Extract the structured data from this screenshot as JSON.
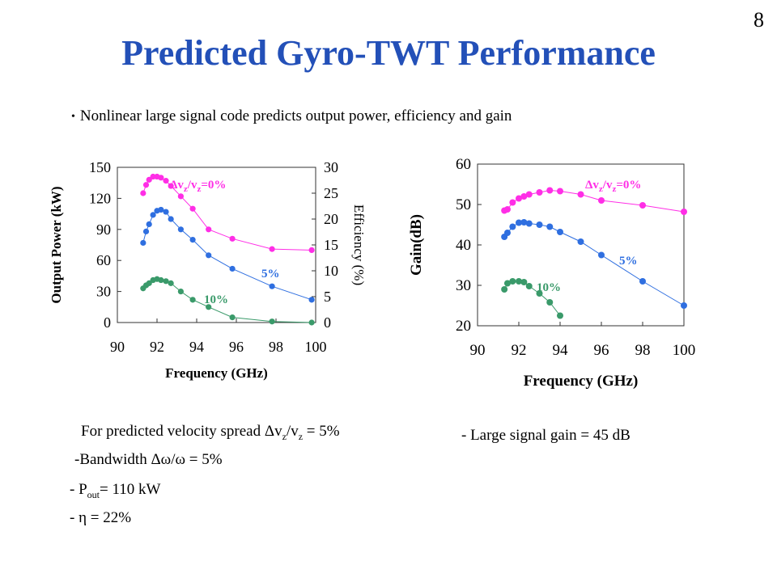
{
  "slide": {
    "number": "8",
    "title": "Predicted Gyro-TWT Performance",
    "bullet": "Nonlinear large signal code predicts output power, efficiency and gain"
  },
  "notes": {
    "spread_prefix": "For predicted velocity spread ",
    "spread_delta": "Δ",
    "spread_v1": "v",
    "spread_sub1": "z",
    "spread_slash": "/v",
    "spread_sub2": "z",
    "spread_value": " = 5%",
    "bandwidth_prefix": "-Bandwidth ",
    "bandwidth_symbol": "Δω/ω",
    "bandwidth_value": " = 5%",
    "pout_prefix": "- P",
    "pout_sub": "out",
    "pout_value": "= 110 kW",
    "eta_prefix": "- ",
    "eta_symbol": "η",
    "eta_value": " = 22%",
    "gain_note": "- Large signal gain = 45 dB"
  },
  "colors": {
    "title": "#2350b8",
    "magenta": "#ff2ee6",
    "blue": "#2f6fe0",
    "green": "#3a9a6a"
  },
  "chart_data": [
    {
      "type": "scatter",
      "xlabel": "Frequency (GHz)",
      "ylabel": "Output Power (kW)",
      "y2label": "Efficiency (%)",
      "xlim": [
        90,
        100
      ],
      "ylim": [
        0,
        150
      ],
      "y2lim": [
        0,
        30
      ],
      "xticks": [
        "90",
        "92",
        "94",
        "96",
        "98",
        "100"
      ],
      "yticks": [
        "0",
        "30",
        "60",
        "90",
        "120",
        "150"
      ],
      "y2ticks": [
        "0",
        "5",
        "10",
        "15",
        "20",
        "25",
        "30"
      ],
      "series": [
        {
          "name": "Δv_z/v_z=0%",
          "label_main": "Δv",
          "label_sub1": "z",
          "label_mid": "/v",
          "label_sub2": "z",
          "label_end": "=0%",
          "color": "#ff2ee6",
          "x": [
            91.3,
            91.45,
            91.6,
            91.8,
            92.0,
            92.2,
            92.45,
            92.7,
            93.2,
            93.8,
            94.6,
            95.8,
            97.8,
            99.8
          ],
          "y": [
            125,
            133,
            138,
            141,
            141,
            140,
            137,
            132,
            122,
            110,
            90,
            81,
            71,
            70
          ]
        },
        {
          "name": "5%",
          "color": "#2f6fe0",
          "x": [
            91.3,
            91.45,
            91.6,
            91.8,
            92.0,
            92.2,
            92.45,
            92.7,
            93.2,
            93.8,
            94.6,
            95.8,
            97.8,
            99.8
          ],
          "y": [
            77,
            88,
            95,
            104,
            108,
            109,
            107,
            100,
            90,
            80,
            65,
            52,
            35,
            22
          ]
        },
        {
          "name": "10%",
          "color": "#3a9a6a",
          "x": [
            91.3,
            91.45,
            91.6,
            91.8,
            92.0,
            92.2,
            92.45,
            92.7,
            93.2,
            93.8,
            94.6,
            95.8,
            97.8,
            99.8
          ],
          "y": [
            33,
            36,
            38,
            41,
            42,
            41,
            40,
            38,
            30,
            22,
            15,
            5,
            1,
            0
          ]
        }
      ]
    },
    {
      "type": "scatter",
      "xlabel": "Frequency (GHz)",
      "ylabel": "Gain(dB)",
      "xlim": [
        90,
        100
      ],
      "ylim": [
        20,
        60
      ],
      "xticks": [
        "90",
        "92",
        "94",
        "96",
        "98",
        "100"
      ],
      "yticks": [
        "20",
        "30",
        "40",
        "50",
        "60"
      ],
      "series": [
        {
          "name": "Δv_z/v_z=0%",
          "label_main": "Δv",
          "label_sub1": "z",
          "label_mid": "/v",
          "label_sub2": "z",
          "label_end": "=0%",
          "color": "#ff2ee6",
          "x": [
            91.3,
            91.45,
            91.7,
            92.0,
            92.25,
            92.5,
            93.0,
            93.5,
            94.0,
            95.0,
            96.0,
            98.0,
            100.0
          ],
          "y": [
            48.5,
            48.8,
            50.5,
            51.5,
            52,
            52.5,
            53,
            53.5,
            53.3,
            52.5,
            51,
            49.8,
            48.2
          ]
        },
        {
          "name": "5%",
          "color": "#2f6fe0",
          "x": [
            91.3,
            91.45,
            91.7,
            92.0,
            92.25,
            92.5,
            93.0,
            93.5,
            94.0,
            95.0,
            96.0,
            98.0,
            100.0
          ],
          "y": [
            42,
            43,
            44.5,
            45.5,
            45.6,
            45.3,
            45,
            44.5,
            43.2,
            40.8,
            37.5,
            31,
            25
          ]
        },
        {
          "name": "10%",
          "color": "#3a9a6a",
          "x": [
            91.3,
            91.45,
            91.7,
            92.0,
            92.25,
            92.5,
            93.0,
            93.5,
            94.0
          ],
          "y": [
            29,
            30.5,
            31,
            31,
            30.8,
            29.8,
            28,
            25.8,
            22.5
          ]
        }
      ]
    }
  ]
}
